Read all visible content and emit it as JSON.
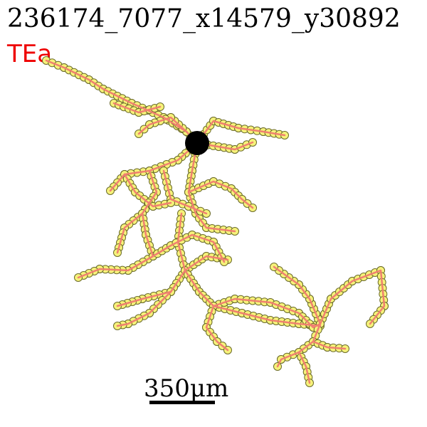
{
  "title": "236174_7077_x14579_y30892",
  "region": "TEa",
  "scale_bar": {
    "label": "350μm"
  },
  "colors": {
    "branch": "#f08070",
    "node_fill": "#f6f27a",
    "node_stroke": "#6b6b2a",
    "soma": "#000000",
    "region_text": "#ee0000"
  }
}
